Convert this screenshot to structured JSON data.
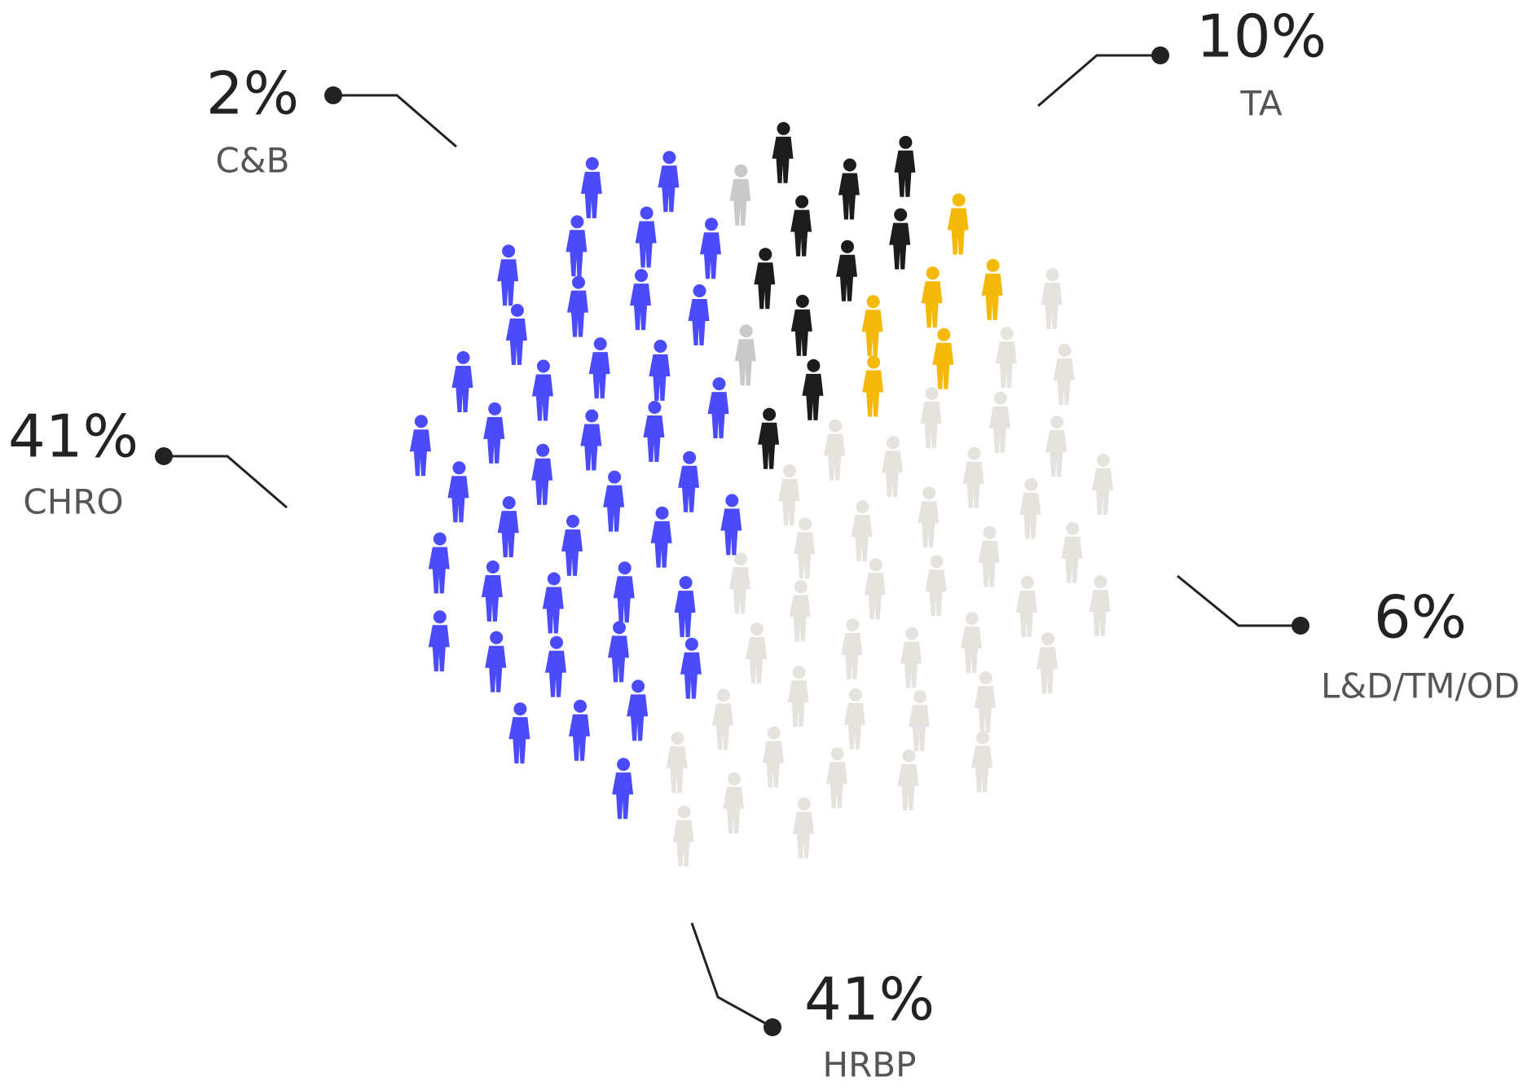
{
  "chart_data": {
    "type": "pictogram",
    "categories": [
      "TA",
      "L&D/TM/OD",
      "HRBP",
      "CHRO",
      "C&B"
    ],
    "values": [
      10,
      6,
      41,
      41,
      2
    ],
    "value_labels": [
      "10%",
      "6%",
      "41%",
      "41%",
      "2%"
    ],
    "colors": [
      "#1c1c1c",
      "#f5b90a",
      "#e6e2de",
      "#4b4bfb",
      "#c9c9c9"
    ]
  }
}
